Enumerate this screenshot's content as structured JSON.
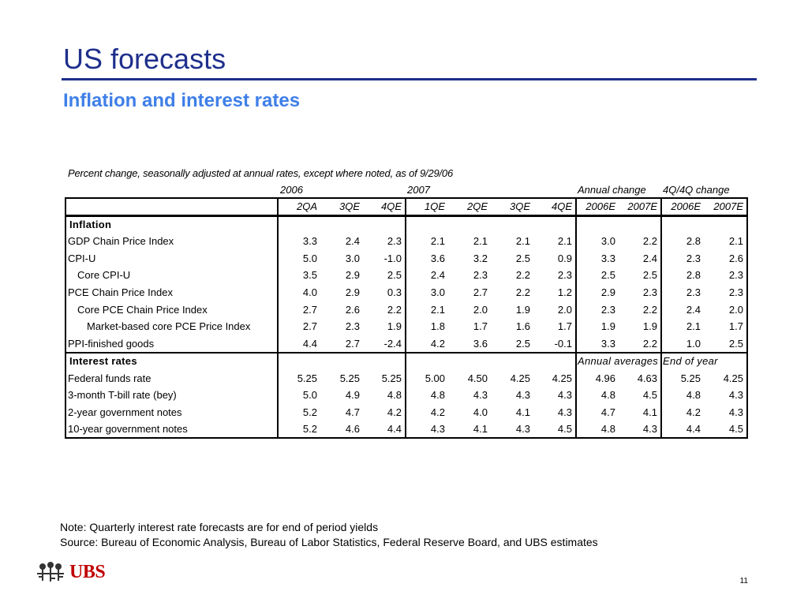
{
  "title": "US forecasts",
  "subtitle": "Inflation and interest rates",
  "caption": "Percent change, seasonally adjusted at annual rates, except where noted, as of 9/29/06",
  "groups": {
    "y2006": "2006",
    "y2007": "2007",
    "annual": "Annual change",
    "q4q4": "4Q/4Q change"
  },
  "columns": [
    "2QA",
    "3QE",
    "4QE",
    "1QE",
    "2QE",
    "3QE",
    "4QE",
    "2006E",
    "2007E",
    "2006E",
    "2007E"
  ],
  "sections": [
    {
      "label": "Inflation",
      "sublabels": [],
      "rows": [
        {
          "label": "GDP Chain Price Index",
          "indent": 0,
          "values": [
            "3.3",
            "2.4",
            "2.3",
            "2.1",
            "2.1",
            "2.1",
            "2.1",
            "3.0",
            "2.2",
            "2.8",
            "2.1"
          ]
        },
        {
          "label": "CPI-U",
          "indent": 0,
          "values": [
            "5.0",
            "3.0",
            "-1.0",
            "3.6",
            "3.2",
            "2.5",
            "0.9",
            "3.3",
            "2.4",
            "2.3",
            "2.6"
          ]
        },
        {
          "label": "Core CPI-U",
          "indent": 1,
          "values": [
            "3.5",
            "2.9",
            "2.5",
            "2.4",
            "2.3",
            "2.2",
            "2.3",
            "2.5",
            "2.5",
            "2.8",
            "2.3"
          ]
        },
        {
          "label": "PCE Chain Price Index",
          "indent": 0,
          "values": [
            "4.0",
            "2.9",
            "0.3",
            "3.0",
            "2.7",
            "2.2",
            "1.2",
            "2.9",
            "2.3",
            "2.3",
            "2.3"
          ]
        },
        {
          "label": "Core PCE Chain Price Index",
          "indent": 1,
          "values": [
            "2.7",
            "2.6",
            "2.2",
            "2.1",
            "2.0",
            "1.9",
            "2.0",
            "2.3",
            "2.2",
            "2.4",
            "2.0"
          ]
        },
        {
          "label": "Market-based core PCE Price Index",
          "indent": 2,
          "values": [
            "2.7",
            "2.3",
            "1.9",
            "1.8",
            "1.7",
            "1.6",
            "1.7",
            "1.9",
            "1.9",
            "2.1",
            "1.7"
          ]
        },
        {
          "label": "PPI-finished goods",
          "indent": 0,
          "values": [
            "4.4",
            "2.7",
            "-2.4",
            "4.2",
            "3.6",
            "2.5",
            "-0.1",
            "3.3",
            "2.2",
            "1.0",
            "2.5"
          ]
        }
      ]
    },
    {
      "label": "Interest rates",
      "sublabels": [
        "Annual averages",
        "End of year"
      ],
      "rows": [
        {
          "label": "Federal funds rate",
          "indent": 0,
          "values": [
            "5.25",
            "5.25",
            "5.25",
            "5.00",
            "4.50",
            "4.25",
            "4.25",
            "4.96",
            "4.63",
            "5.25",
            "4.25"
          ]
        },
        {
          "label": "3-month T-bill rate (bey)",
          "indent": 0,
          "values": [
            "5.0",
            "4.9",
            "4.8",
            "4.8",
            "4.3",
            "4.3",
            "4.3",
            "4.8",
            "4.5",
            "4.8",
            "4.3"
          ]
        },
        {
          "label": "2-year government notes",
          "indent": 0,
          "values": [
            "5.2",
            "4.7",
            "4.2",
            "4.2",
            "4.0",
            "4.1",
            "4.3",
            "4.7",
            "4.1",
            "4.2",
            "4.3"
          ]
        },
        {
          "label": "10-year government notes",
          "indent": 0,
          "values": [
            "5.2",
            "4.6",
            "4.4",
            "4.3",
            "4.1",
            "4.3",
            "4.5",
            "4.8",
            "4.3",
            "4.4",
            "4.5"
          ]
        }
      ]
    }
  ],
  "notes": [
    "Note: Quarterly interest rate forecasts are for end of period yields",
    "Source: Bureau of Economic Analysis, Bureau of Labor Statistics, Federal Reserve Board, and UBS estimates"
  ],
  "logo": {
    "text": "UBS",
    "color": "#c00000"
  },
  "page_number": "11"
}
